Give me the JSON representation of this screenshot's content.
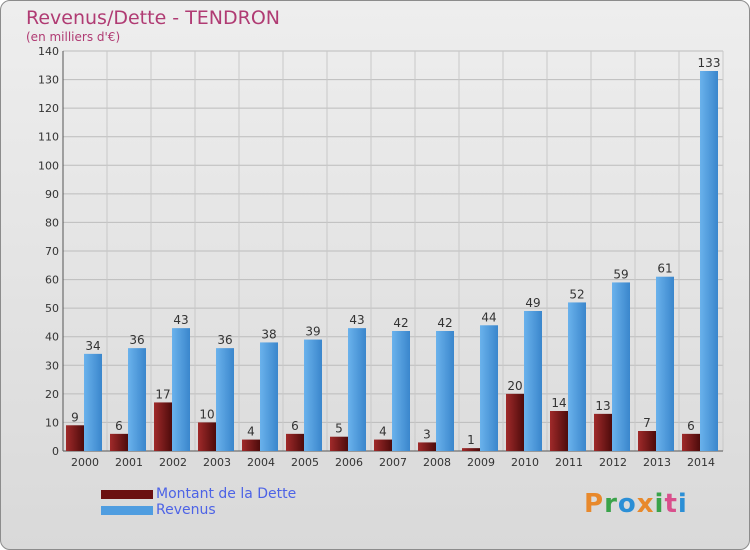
{
  "header": {
    "title": "Revenus/Dette - TENDRON",
    "subtitle": "(en milliers d'€)"
  },
  "legend": {
    "items": [
      {
        "label": "Montant de la Dette",
        "color": "#7a1515"
      },
      {
        "label": "Revenus",
        "color": "#4f9de0"
      }
    ]
  },
  "logo": {
    "text": "Proxiti",
    "colors": [
      "#e8892c",
      "#3aa34a",
      "#2b8fd6",
      "#e8892c",
      "#3aa34a",
      "#d94f8c",
      "#2b8fd6"
    ]
  },
  "chart_data": {
    "type": "bar",
    "title": "Revenus/Dette - TENDRON",
    "subtitle": "(en milliers d'€)",
    "categories": [
      "2000",
      "2001",
      "2002",
      "2003",
      "2004",
      "2005",
      "2006",
      "2007",
      "2008",
      "2009",
      "2010",
      "2011",
      "2012",
      "2013",
      "2014"
    ],
    "series": [
      {
        "name": "Montant de la Dette",
        "color": "#7a1515",
        "values": [
          9,
          6,
          17,
          10,
          4,
          6,
          5,
          4,
          3,
          1,
          20,
          14,
          13,
          7,
          6
        ]
      },
      {
        "name": "Revenus",
        "color": "#4f9de0",
        "values": [
          34,
          36,
          43,
          36,
          38,
          39,
          43,
          42,
          42,
          44,
          49,
          52,
          59,
          61,
          133
        ]
      }
    ],
    "ylim": [
      0,
      140
    ],
    "yticks": [
      0,
      10,
      20,
      30,
      40,
      50,
      60,
      70,
      80,
      90,
      100,
      110,
      120,
      130,
      140
    ],
    "grid": true,
    "legend_position": "bottom-left"
  }
}
